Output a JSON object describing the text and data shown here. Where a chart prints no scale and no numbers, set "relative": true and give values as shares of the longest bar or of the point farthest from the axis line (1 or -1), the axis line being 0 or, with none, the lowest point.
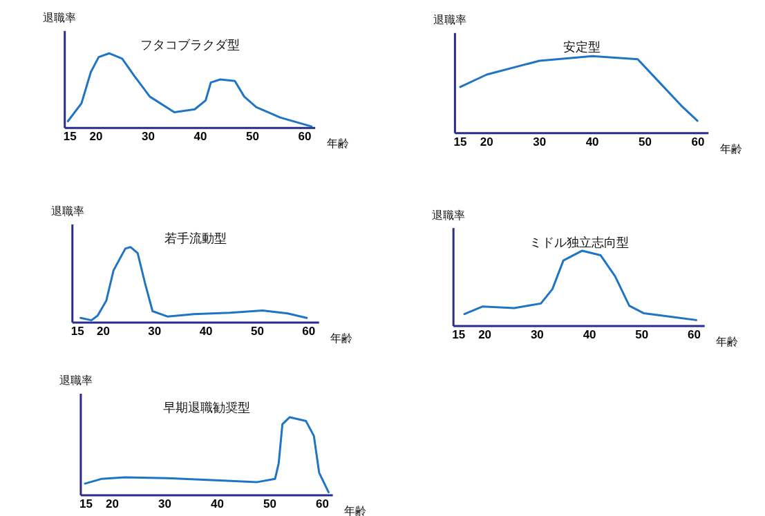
{
  "chart_data": [
    {
      "type": "line",
      "title": "フタコブラクダ型",
      "xlabel": "年齢",
      "ylabel": "退職率",
      "relative": true,
      "tick_labels": "x",
      "grid": false,
      "xlim": [
        14,
        62
      ],
      "xticks": [
        15,
        20,
        30,
        40,
        50,
        60
      ],
      "series": [
        {
          "color": "#1f74c4",
          "x": [
            14.6,
            17.2,
            19,
            20.5,
            22.5,
            25,
            27.3,
            30.3,
            35,
            38.9,
            41,
            42,
            43.8,
            46.6,
            48.4,
            50.7,
            55.3,
            61.3
          ],
          "values": [
            0.09,
            0.33,
            0.75,
            0.95,
            1,
            0.93,
            0.7,
            0.42,
            0.21,
            0.25,
            0.37,
            0.61,
            0.65,
            0.63,
            0.42,
            0.28,
            0.14,
            0.02
          ]
        }
      ]
    },
    {
      "type": "line",
      "title": "安定型",
      "xlabel": "年齢",
      "ylabel": "退職率",
      "relative": true,
      "tick_labels": "x",
      "grid": false,
      "xlim": [
        14,
        62
      ],
      "xticks": [
        15,
        20,
        30,
        40,
        50,
        60
      ],
      "series": [
        {
          "color": "#1f74c4",
          "x": [
            15,
            20,
            30,
            40,
            48.6,
            52.7,
            56.8,
            59.9
          ],
          "values": [
            0.6,
            0.76,
            0.94,
            1,
            0.96,
            0.66,
            0.36,
            0.16
          ]
        }
      ]
    },
    {
      "type": "line",
      "title": "若手流動型",
      "xlabel": "年齢",
      "ylabel": "退職率",
      "relative": true,
      "tick_labels": "x",
      "grid": false,
      "xlim": [
        14,
        62
      ],
      "xticks": [
        15,
        20,
        30,
        40,
        50,
        60
      ],
      "series": [
        {
          "color": "#1f74c4",
          "x": [
            15.6,
            17.7,
            18.9,
            20.6,
            22,
            24.3,
            25.3,
            26.7,
            28.1,
            29.6,
            32.5,
            37.6,
            44.7,
            51,
            55.9,
            59.6
          ],
          "values": [
            0.06,
            0.03,
            0.09,
            0.29,
            0.69,
            0.98,
            1,
            0.92,
            0.53,
            0.15,
            0.08,
            0.11,
            0.13,
            0.16,
            0.12,
            0.06
          ]
        }
      ]
    },
    {
      "type": "line",
      "title": "ミドル独立志向型",
      "xlabel": "年齢",
      "ylabel": "退職率",
      "relative": true,
      "tick_labels": "x",
      "grid": false,
      "xlim": [
        14,
        62
      ],
      "xticks": [
        15,
        20,
        30,
        40,
        50,
        60
      ],
      "series": [
        {
          "color": "#1f74c4",
          "x": [
            16.1,
            19.6,
            25.6,
            30.7,
            32.9,
            35,
            38.6,
            42.1,
            44.9,
            47.6,
            50.4,
            56,
            60.4
          ],
          "values": [
            0.16,
            0.26,
            0.24,
            0.3,
            0.49,
            0.87,
            1,
            0.94,
            0.66,
            0.27,
            0.17,
            0.12,
            0.08
          ]
        }
      ]
    },
    {
      "type": "line",
      "title": "早期退職勧奨型",
      "xlabel": "年齢",
      "ylabel": "退職率",
      "relative": true,
      "tick_labels": "x",
      "grid": false,
      "xlim": [
        14,
        62
      ],
      "xticks": [
        15,
        20,
        30,
        40,
        50,
        60
      ],
      "series": [
        {
          "color": "#1f74c4",
          "x": [
            14.8,
            17.9,
            22.4,
            30.5,
            40.4,
            47.6,
            51,
            51.7,
            52.4,
            53.8,
            56.9,
            58.4,
            59.4,
            61.2
          ],
          "values": [
            0.15,
            0.21,
            0.23,
            0.22,
            0.19,
            0.17,
            0.21,
            0.41,
            0.91,
            1,
            0.95,
            0.76,
            0.29,
            0.04
          ]
        }
      ]
    }
  ]
}
